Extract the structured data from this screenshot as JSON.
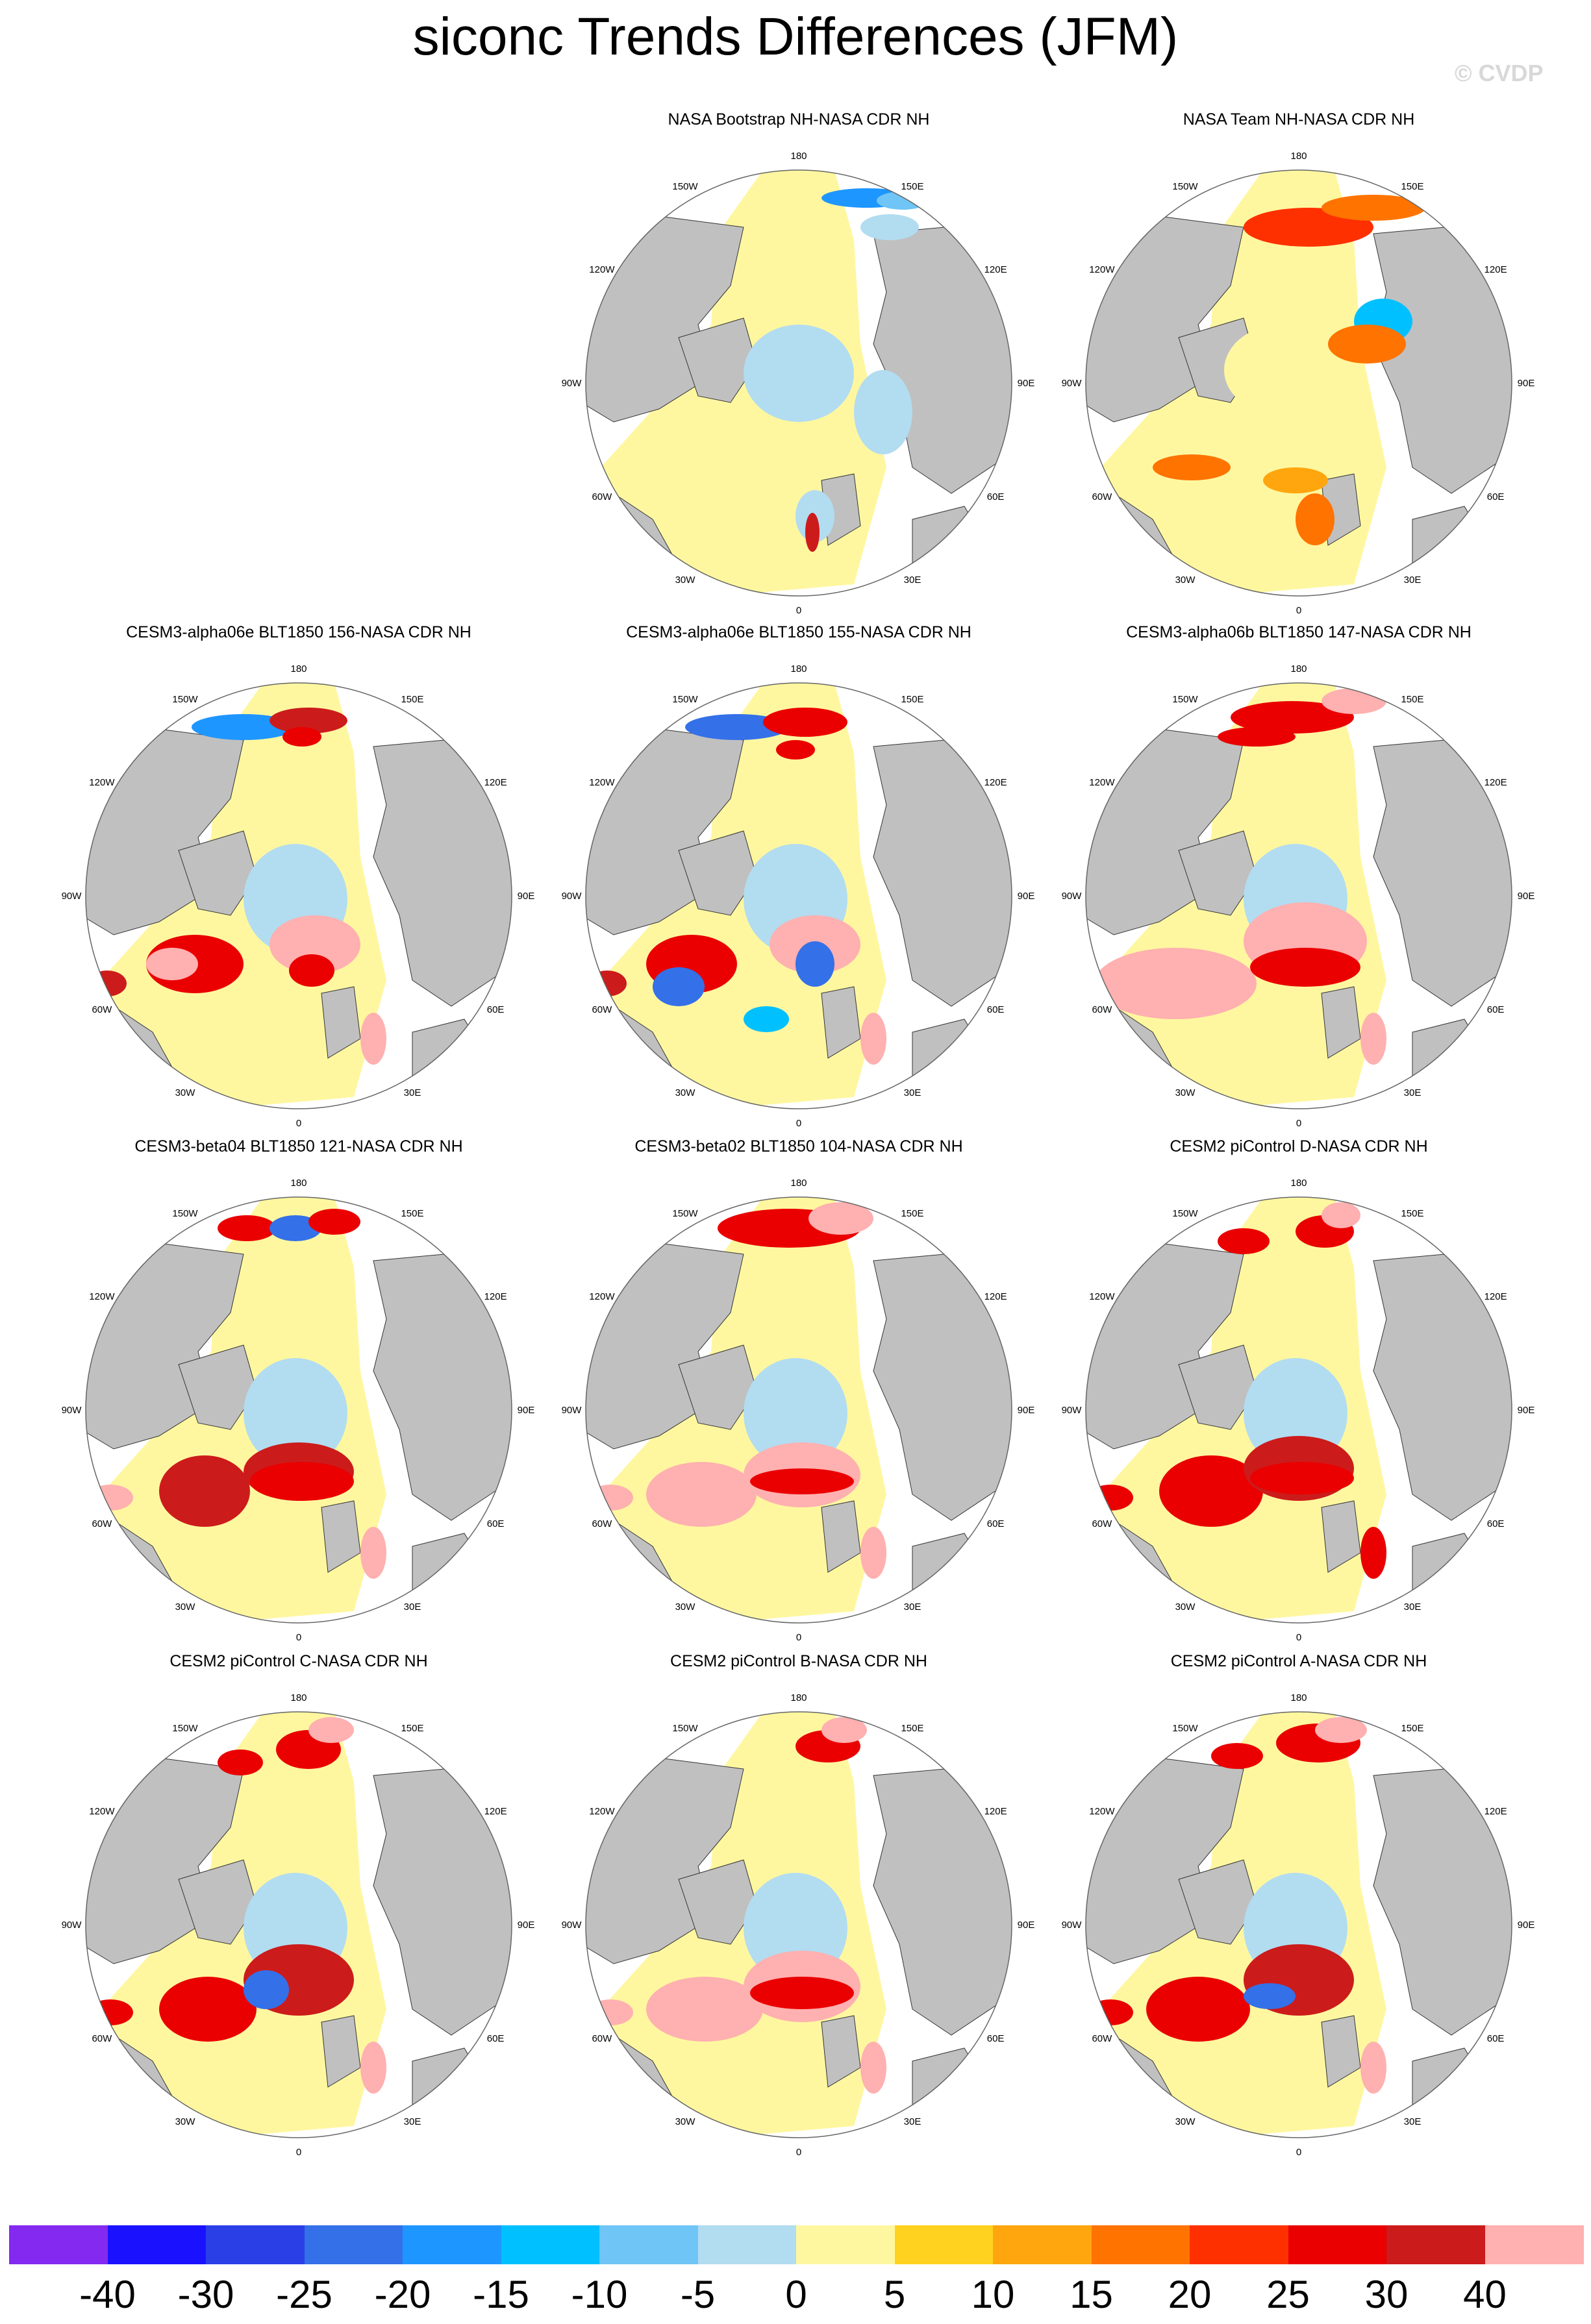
{
  "title": "siconc Trends Differences (JFM)",
  "watermark": "© CVDP",
  "map_labels": {
    "lon_180": "180",
    "lon_150e": "150E",
    "lon_120e": "120E",
    "lon_90e": "90E",
    "lon_60e": "60E",
    "lon_30e": "30E",
    "lon_0": "0",
    "lon_30w": "30W",
    "lon_60w": "60W",
    "lon_90w": "90W",
    "lon_120w": "120W",
    "lon_150w": "150W"
  },
  "panels": [
    {
      "title": "NASA Bootstrap NH-NASA CDR NH",
      "pattern": "bootstrap"
    },
    {
      "title": "NASA Team NH-NASA CDR NH",
      "pattern": "team"
    },
    {
      "title": "CESM3-alpha06e BLT1850 156-NASA CDR NH",
      "pattern": "a156"
    },
    {
      "title": "CESM3-alpha06e BLT1850 155-NASA CDR NH",
      "pattern": "a155"
    },
    {
      "title": "CESM3-alpha06b BLT1850 147-NASA CDR NH",
      "pattern": "a147"
    },
    {
      "title": "CESM3-beta04 BLT1850 121-NASA CDR NH",
      "pattern": "b121"
    },
    {
      "title": "CESM3-beta02 BLT1850 104-NASA CDR NH",
      "pattern": "b104"
    },
    {
      "title": "CESM2 piControl D-NASA CDR NH",
      "pattern": "pcD"
    },
    {
      "title": "CESM2 piControl C-NASA CDR NH",
      "pattern": "pcC"
    },
    {
      "title": "CESM2 piControl B-NASA CDR NH",
      "pattern": "pcB"
    },
    {
      "title": "CESM2 piControl A-NASA CDR NH",
      "pattern": "pcA"
    }
  ],
  "colorbar": {
    "colors": [
      "#8429f0",
      "#1a12ff",
      "#2b3fe6",
      "#3470e8",
      "#1e96ff",
      "#00c0ff",
      "#6fc5f5",
      "#b2dcf0",
      "#fff7a0",
      "#ffd21f",
      "#ffa60f",
      "#ff7300",
      "#ff3000",
      "#ea0000",
      "#cc1b1b",
      "#ffb0b0"
    ],
    "tick_labels": [
      "-40",
      "-30",
      "-25",
      "-20",
      "-15",
      "-10",
      "-5",
      "0",
      "5",
      "10",
      "15",
      "20",
      "25",
      "30",
      "40"
    ]
  }
}
